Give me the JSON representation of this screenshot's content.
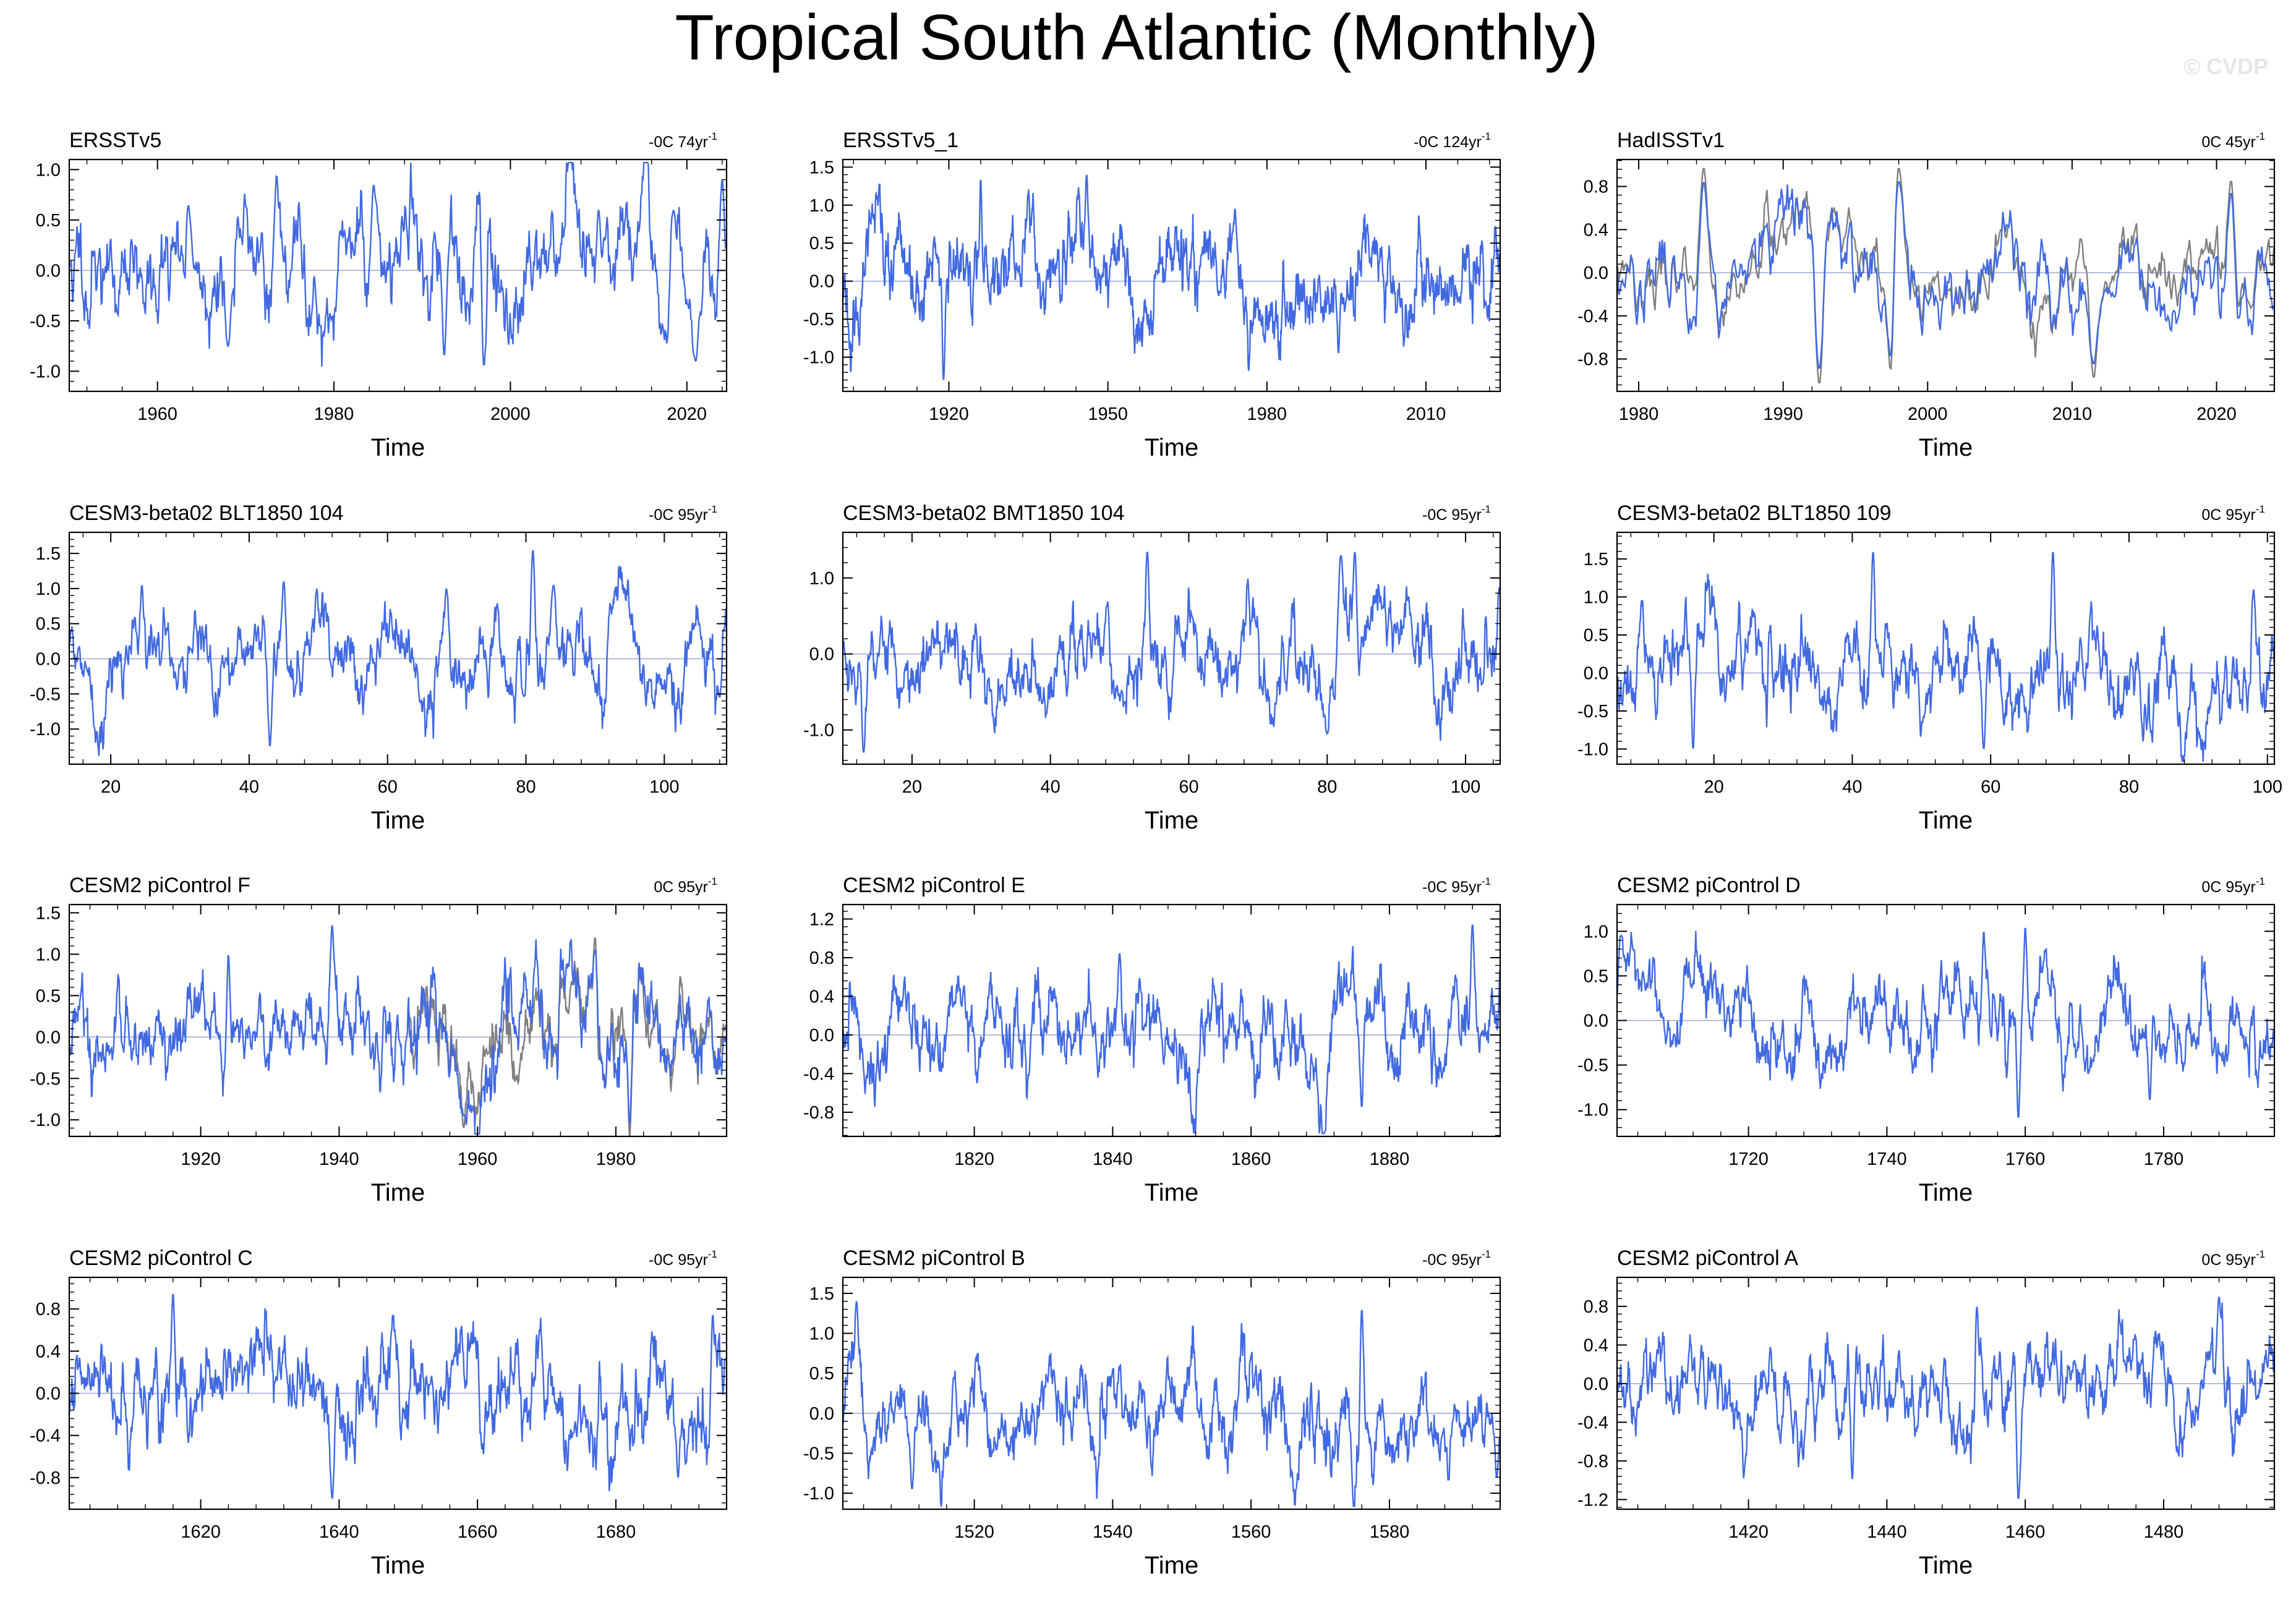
{
  "figure": {
    "title": "Tropical South Atlantic (Monthly)",
    "watermark": "© CVDP",
    "line_color": "#4169e1",
    "obs_overlay_color": "#7f7f7f",
    "zero_line_color": "#9aa6d6"
  },
  "chart_data": [
    {
      "type": "line",
      "name": "ERSSTv5",
      "trend_label": "-0C 74yr",
      "trend_superscript": "-1",
      "xlabel": "Time",
      "xlim": [
        1950,
        2024.5
      ],
      "xticks": [
        1960,
        1980,
        2000,
        2020
      ],
      "ylim": [
        -1.2,
        1.1
      ],
      "yticks": [
        -1.0,
        -0.5,
        0.0,
        0.5,
        1.0
      ],
      "ytick_labels": [
        "-1.0",
        "-0.5",
        "0.0",
        "0.5",
        "1.0"
      ],
      "amplitude": 0.38,
      "seed": 11,
      "overlay": false,
      "events": [
        [
          1963.5,
          0.65
        ],
        [
          1968.0,
          -0.75
        ],
        [
          1973.5,
          0.95
        ],
        [
          1984.5,
          0.85
        ],
        [
          1997.0,
          -0.95
        ],
        [
          1992.5,
          -0.85
        ],
        [
          2010.0,
          0.6
        ],
        [
          2018.5,
          0.6
        ],
        [
          2021.0,
          -0.9
        ],
        [
          2024.0,
          0.9
        ]
      ]
    },
    {
      "type": "line",
      "name": "ERSSTv5_1",
      "trend_label": "-0C 124yr",
      "trend_superscript": "-1",
      "xlabel": "Time",
      "xlim": [
        1900,
        2024
      ],
      "xticks": [
        1920,
        1950,
        1980,
        2010
      ],
      "ylim": [
        -1.45,
        1.6
      ],
      "yticks": [
        -1.0,
        -0.5,
        0.0,
        0.5,
        1.0,
        1.5
      ],
      "ytick_labels": [
        "-1.0",
        "-0.5",
        "0.0",
        "0.5",
        "1.0",
        "1.5"
      ],
      "amplitude": 0.42,
      "seed": 23,
      "overlay": false,
      "events": [
        [
          1919.0,
          -1.3
        ],
        [
          1926.0,
          1.35
        ],
        [
          1946.0,
          1.4
        ],
        [
          1974.0,
          0.95
        ],
        [
          1993.5,
          -0.95
        ]
      ]
    },
    {
      "type": "line",
      "name": "HadISSTv1",
      "trend_label": "0C 45yr",
      "trend_superscript": "-1",
      "xlabel": "Time",
      "xlim": [
        1978.5,
        2024
      ],
      "xticks": [
        1980,
        1990,
        2000,
        2010,
        2020
      ],
      "ylim": [
        -1.1,
        1.05
      ],
      "yticks": [
        -0.8,
        -0.4,
        0.0,
        0.4,
        0.8
      ],
      "ytick_labels": [
        "-0.8",
        "-0.4",
        "0.0",
        "0.4",
        "0.8"
      ],
      "amplitude": 0.3,
      "seed": 37,
      "overlay": true,
      "events": [
        [
          1984.5,
          0.85
        ],
        [
          1992.5,
          -0.9
        ],
        [
          1997.5,
          -0.95
        ],
        [
          1998.0,
          0.85
        ],
        [
          2011.5,
          -0.85
        ],
        [
          2021.0,
          0.75
        ]
      ]
    },
    {
      "type": "line",
      "name": "CESM3-beta02 BLT1850 104",
      "trend_label": "-0C 95yr",
      "trend_superscript": "-1",
      "xlabel": "Time",
      "xlim": [
        14,
        109
      ],
      "xticks": [
        20,
        40,
        60,
        80,
        100
      ],
      "ylim": [
        -1.5,
        1.8
      ],
      "yticks": [
        -1.0,
        -0.5,
        0.0,
        0.5,
        1.0,
        1.5
      ],
      "ytick_labels": [
        "-1.0",
        "-0.5",
        "0.0",
        "0.5",
        "1.0",
        "1.5"
      ],
      "amplitude": 0.42,
      "seed": 41,
      "overlay": false,
      "events": [
        [
          24.5,
          1.05
        ],
        [
          43.0,
          -1.25
        ],
        [
          45.0,
          1.1
        ],
        [
          68.5,
          1.0
        ],
        [
          81.0,
          1.55
        ],
        [
          84.0,
          1.05
        ],
        [
          108.0,
          -0.55
        ]
      ]
    },
    {
      "type": "line",
      "name": "CESM3-beta02 BMT1850 104",
      "trend_label": "-0C 95yr",
      "trend_superscript": "-1",
      "xlabel": "Time",
      "xlim": [
        10,
        105
      ],
      "xticks": [
        20,
        40,
        60,
        80,
        100
      ],
      "ylim": [
        -1.45,
        1.6
      ],
      "yticks": [
        -1.0,
        0.0,
        1.0
      ],
      "ytick_labels": [
        "-1.0",
        "0.0",
        "1.0"
      ],
      "amplitude": 0.4,
      "seed": 53,
      "overlay": false,
      "events": [
        [
          13.0,
          -1.3
        ],
        [
          54.0,
          1.35
        ],
        [
          80.0,
          -1.05
        ],
        [
          82.0,
          1.3
        ],
        [
          84.0,
          1.35
        ]
      ]
    },
    {
      "type": "line",
      "name": "CESM3-beta02 BLT1850 109",
      "trend_label": "0C 95yr",
      "trend_superscript": "-1",
      "xlabel": "Time",
      "xlim": [
        6,
        101
      ],
      "xticks": [
        20,
        40,
        60,
        80,
        100
      ],
      "ylim": [
        -1.2,
        1.85
      ],
      "yticks": [
        -1.0,
        -0.5,
        0.0,
        0.5,
        1.0,
        1.5
      ],
      "ytick_labels": [
        "-1.0",
        "-0.5",
        "0.0",
        "0.5",
        "1.0",
        "1.5"
      ],
      "amplitude": 0.4,
      "seed": 67,
      "overlay": false,
      "events": [
        [
          43.0,
          1.6
        ],
        [
          59.0,
          -1.0
        ],
        [
          69.0,
          1.6
        ],
        [
          17.0,
          -1.0
        ],
        [
          98.0,
          1.1
        ]
      ]
    },
    {
      "type": "line",
      "name": "CESM2 piControl F",
      "trend_label": "0C 95yr",
      "trend_superscript": "-1",
      "xlabel": "Time",
      "xlim": [
        1901,
        1996
      ],
      "xticks": [
        1920,
        1940,
        1960,
        1980
      ],
      "ylim": [
        -1.2,
        1.6
      ],
      "yticks": [
        -1.0,
        -0.5,
        0.0,
        0.5,
        1.0,
        1.5
      ],
      "ytick_labels": [
        "-1.0",
        "-0.5",
        "0.0",
        "0.5",
        "1.0",
        "1.5"
      ],
      "amplitude": 0.4,
      "seed": 79,
      "overlay": true,
      "overlay_start": 1950,
      "events": [
        [
          1924.0,
          1.0
        ],
        [
          1939.0,
          1.35
        ],
        [
          1958.0,
          -0.95
        ],
        [
          1982.0,
          -1.05
        ],
        [
          1977.0,
          1.05
        ]
      ]
    },
    {
      "type": "line",
      "name": "CESM2 piControl E",
      "trend_label": "-0C 95yr",
      "trend_superscript": "-1",
      "xlabel": "Time",
      "xlim": [
        1801,
        1896
      ],
      "xticks": [
        1820,
        1840,
        1860,
        1880
      ],
      "ylim": [
        -1.05,
        1.35
      ],
      "yticks": [
        -0.8,
        -0.4,
        0.0,
        0.4,
        0.8,
        1.2
      ],
      "ytick_labels": [
        "-0.8",
        "-0.4",
        "0.0",
        "0.4",
        "0.8",
        "1.2"
      ],
      "amplitude": 0.32,
      "seed": 83,
      "overlay": false,
      "events": [
        [
          1892.0,
          1.15
        ],
        [
          1876.0,
          -0.75
        ],
        [
          1841.0,
          0.85
        ]
      ]
    },
    {
      "type": "line",
      "name": "CESM2 piControl D",
      "trend_label": "0C 95yr",
      "trend_superscript": "-1",
      "xlabel": "Time",
      "xlim": [
        1701,
        1796
      ],
      "xticks": [
        1720,
        1740,
        1760,
        1780
      ],
      "ylim": [
        -1.3,
        1.3
      ],
      "yticks": [
        -1.0,
        -0.5,
        0.0,
        0.5,
        1.0
      ],
      "ytick_labels": [
        "-1.0",
        "-0.5",
        "0.0",
        "0.5",
        "1.0"
      ],
      "amplitude": 0.35,
      "seed": 97,
      "overlay": false,
      "events": [
        [
          1701.5,
          0.95
        ],
        [
          1759.0,
          -1.1
        ],
        [
          1760.0,
          1.05
        ],
        [
          1778.0,
          -0.9
        ],
        [
          1754.0,
          1.0
        ]
      ]
    },
    {
      "type": "line",
      "name": "CESM2 piControl C",
      "trend_label": "-0C 95yr",
      "trend_superscript": "-1",
      "xlabel": "Time",
      "xlim": [
        1601,
        1696
      ],
      "xticks": [
        1620,
        1640,
        1660,
        1680
      ],
      "ylim": [
        -1.1,
        1.1
      ],
      "yticks": [
        -0.8,
        -0.4,
        0.0,
        0.4,
        0.8
      ],
      "ytick_labels": [
        "-0.8",
        "-0.4",
        "0.0",
        "0.4",
        "0.8"
      ],
      "amplitude": 0.3,
      "seed": 101,
      "overlay": false,
      "events": [
        [
          1616.0,
          0.95
        ],
        [
          1639.0,
          -1.0
        ],
        [
          1689.0,
          -0.8
        ],
        [
          1694.0,
          0.75
        ]
      ]
    },
    {
      "type": "line",
      "name": "CESM2 piControl B",
      "trend_label": "-0C 95yr",
      "trend_superscript": "-1",
      "xlabel": "Time",
      "xlim": [
        1501,
        1596
      ],
      "xticks": [
        1520,
        1540,
        1560,
        1580
      ],
      "ylim": [
        -1.2,
        1.7
      ],
      "yticks": [
        -1.0,
        -0.5,
        0.0,
        0.5,
        1.0,
        1.5
      ],
      "ytick_labels": [
        "-1.0",
        "-0.5",
        "0.0",
        "0.5",
        "1.0",
        "1.5"
      ],
      "amplitude": 0.38,
      "seed": 113,
      "overlay": false,
      "events": [
        [
          1503.0,
          1.4
        ],
        [
          1511.0,
          -0.95
        ],
        [
          1576.0,
          1.3
        ],
        [
          1595.5,
          -0.8
        ]
      ]
    },
    {
      "type": "line",
      "name": "CESM2 piControl A",
      "trend_label": "0C 95yr",
      "trend_superscript": "-1",
      "xlabel": "Time",
      "xlim": [
        1401,
        1496
      ],
      "xticks": [
        1420,
        1440,
        1460,
        1480
      ],
      "ylim": [
        -1.3,
        1.1
      ],
      "yticks": [
        -1.2,
        -0.8,
        -0.4,
        0.0,
        0.4,
        0.8
      ],
      "ytick_labels": [
        "-1.2",
        "-0.8",
        "-0.4",
        "0.0",
        "0.4",
        "0.8"
      ],
      "amplitude": 0.3,
      "seed": 127,
      "overlay": false,
      "events": [
        [
          1459.0,
          -1.2
        ],
        [
          1488.0,
          0.9
        ],
        [
          1435.0,
          -1.0
        ],
        [
          1453.0,
          0.8
        ]
      ]
    }
  ]
}
